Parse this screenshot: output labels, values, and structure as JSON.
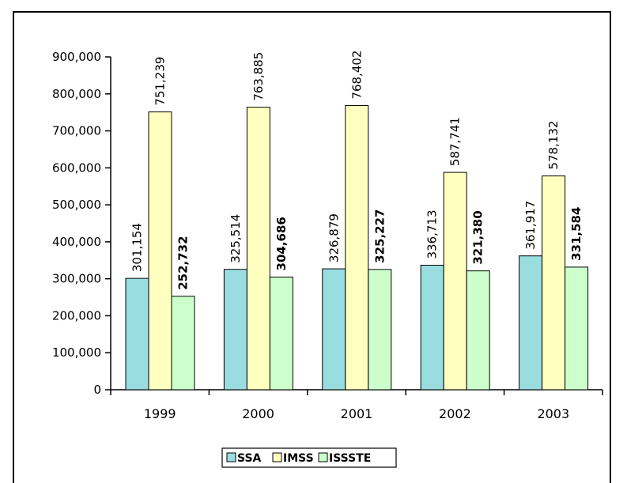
{
  "chart_data": {
    "type": "bar",
    "title": "",
    "xlabel": "",
    "ylabel": "",
    "categories": [
      "1999",
      "2000",
      "2001",
      "2002",
      "2003"
    ],
    "ylim": [
      0,
      900000
    ],
    "yticks": [
      "0",
      "100,000",
      "200,000",
      "300,000",
      "400,000",
      "500,000",
      "600,000",
      "700,000",
      "800,000",
      "900,000"
    ],
    "grid": false,
    "legend_position": "bottom",
    "series": [
      {
        "name": "SSA",
        "color": "#99dde0",
        "label_bold": false,
        "values": [
          301154,
          325514,
          326879,
          336713,
          361917
        ],
        "labels": [
          "301,154",
          "325,514",
          "326,879",
          "336,713",
          "361,917"
        ]
      },
      {
        "name": "IMSS",
        "color": "#ffffc0",
        "label_bold": false,
        "values": [
          751239,
          763885,
          768402,
          587741,
          578132
        ],
        "labels": [
          "751,239",
          "763,885",
          "768,402",
          "587,741",
          "578,132"
        ]
      },
      {
        "name": "ISSSTE",
        "color": "#ccffcc",
        "label_bold": true,
        "values": [
          252732,
          304686,
          325227,
          321380,
          331584
        ],
        "labels": [
          "252,732",
          "304,686",
          "325,227",
          "321,380",
          "331,584"
        ]
      }
    ]
  }
}
